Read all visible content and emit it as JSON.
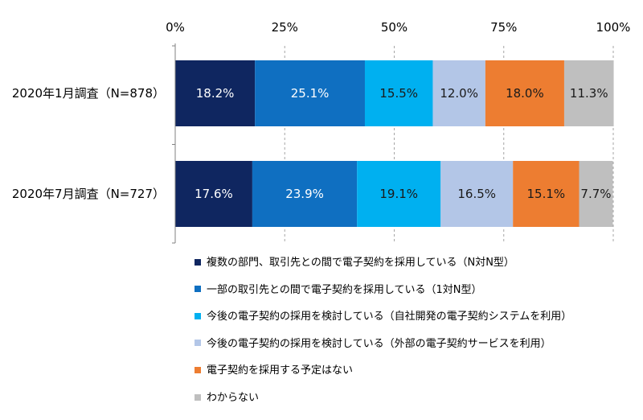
{
  "chart_data": {
    "type": "bar",
    "orientation": "horizontal",
    "stacked": true,
    "normalized_percent": true,
    "x_ticks": [
      "0%",
      "25%",
      "50%",
      "75%",
      "100%"
    ],
    "xlim": [
      0,
      100
    ],
    "grid": "vertical dashed",
    "legend_position": "bottom",
    "categories": [
      "2020年1月調査（N=878）",
      "2020年7月調査（N=727）"
    ],
    "series": [
      {
        "name": "複数の部門、取引先との間で電子契約を採用している（N対N型）",
        "color": "#0f2660",
        "label_color": "#ffffff",
        "values": [
          18.2,
          17.6
        ],
        "labels": [
          "18.2%",
          "17.6%"
        ]
      },
      {
        "name": "一部の取引先との間で電子契約を採用している（1対N型）",
        "color": "#0f6fc1",
        "label_color": "#ffffff",
        "values": [
          25.1,
          23.9
        ],
        "labels": [
          "25.1%",
          "23.9%"
        ]
      },
      {
        "name": "今後の電子契約の採用を検討している（自社開発の電子契約システムを利用）",
        "color": "#00b0f0",
        "label_color": "#1a1a1a",
        "values": [
          15.5,
          19.1
        ],
        "labels": [
          "15.5%",
          "19.1%"
        ]
      },
      {
        "name": "今後の電子契約の採用を検討している（外部の電子契約サービスを利用）",
        "color": "#b3c6e7",
        "label_color": "#1a1a1a",
        "values": [
          12.0,
          16.5
        ],
        "labels": [
          "12.0%",
          "16.5%"
        ]
      },
      {
        "name": "電子契約を採用する予定はない",
        "color": "#ed7d31",
        "label_color": "#1a1a1a",
        "values": [
          18.0,
          15.1
        ],
        "labels": [
          "18.0%",
          "15.1%"
        ]
      },
      {
        "name": "わからない",
        "color": "#bfbfbf",
        "label_color": "#1a1a1a",
        "values": [
          11.3,
          7.7
        ],
        "labels": [
          "11.3%",
          "7.7%"
        ]
      }
    ]
  }
}
